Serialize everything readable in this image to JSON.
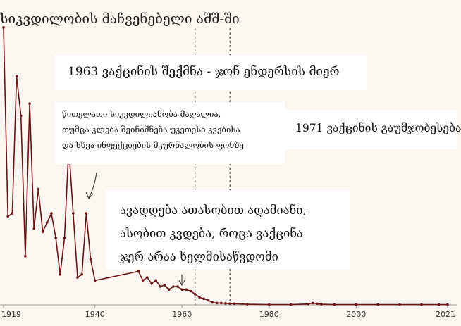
{
  "chart_data": {
    "type": "line",
    "title": "სიკვდილობის მაჩვენებელი აშშ-ში",
    "xlim": [
      1919,
      2021
    ],
    "ylim": [
      0,
      1.0
    ],
    "x_ticks": [
      "1919",
      "1940",
      "1960",
      "1980",
      "2000",
      "2021"
    ],
    "grid": false,
    "series": [
      {
        "color": "#6b1515",
        "x": [
          1919,
          1920,
          1921,
          1922,
          1923,
          1924,
          1925,
          1926,
          1927,
          1928,
          1929,
          1930,
          1931,
          1932,
          1933,
          1934,
          1935,
          1936,
          1937,
          1938,
          1939,
          1940,
          1950,
          1951,
          1952,
          1953,
          1954,
          1955,
          1956,
          1957,
          1958,
          1959,
          1960,
          1961,
          1962,
          1963,
          1964,
          1965,
          1966,
          1967,
          1968,
          1969,
          1970,
          1971,
          1972,
          1975,
          1980,
          1985,
          1989,
          1990,
          1991,
          1992,
          1995,
          2000,
          2005,
          2010,
          2015,
          2019,
          2021
        ],
        "y": [
          0.91,
          0.29,
          0.3,
          0.75,
          0.62,
          0.16,
          0.66,
          0.25,
          0.38,
          0.24,
          0.27,
          0.3,
          0.22,
          0.1,
          0.22,
          0.52,
          0.3,
          0.09,
          0.1,
          0.3,
          0.15,
          0.08,
          0.11,
          0.08,
          0.09,
          0.07,
          0.08,
          0.06,
          0.065,
          0.05,
          0.06,
          0.06,
          0.05,
          0.05,
          0.045,
          0.035,
          0.025,
          0.02,
          0.015,
          0.008,
          0.006,
          0.006,
          0.005,
          0.004,
          0.004,
          0.002,
          0.001,
          0.001,
          0.003,
          0.006,
          0.004,
          0.002,
          0.001,
          0.001,
          0.001,
          0.001,
          0.001,
          0.001,
          0.001
        ]
      }
    ],
    "vlines": [
      {
        "x": 1963,
        "label": "1963 ვაქცინის შექმნა - ჯონ ენდერსის მიერ"
      },
      {
        "x": 1971,
        "label": "1971 ვაქცინის გაუმჯობესება"
      }
    ],
    "annotations": [
      {
        "x": 1938,
        "y": 0.2,
        "lines": [
          "წითელათი სიკვდილიანობა მაღალია,",
          "თუმცა კლება შეინიშნება უკეთესი კვებისა",
          "და სხვა ინფექციების მკურნალობის ფონზე"
        ]
      },
      {
        "x": 1960,
        "y": 0.05,
        "lines": [
          "ავადდება ათასობით ადამიანი,",
          "ასობით კვდება, როცა ვაქცინა",
          "ჯერ არაა ხელმისაწვდომი"
        ]
      }
    ]
  }
}
